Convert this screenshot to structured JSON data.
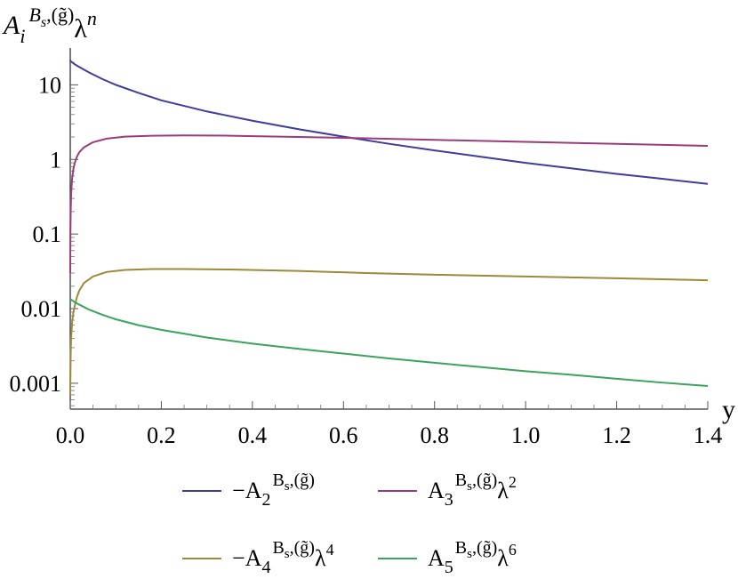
{
  "chart_data": {
    "type": "line",
    "title": "",
    "y_axis_label": {
      "base": "A",
      "sub": "i",
      "sup": "B",
      "sup_sub": "s",
      "sup_rest": ",(g̃)",
      "tail": "λ",
      "tail_sup": "n"
    },
    "x_axis_label": "y",
    "xlim": [
      0,
      1.4
    ],
    "ylim": [
      0.00045,
      25
    ],
    "y_scale": "log",
    "x_ticks": [
      {
        "value": 0.0,
        "label": "0.0"
      },
      {
        "value": 0.2,
        "label": "0.2"
      },
      {
        "value": 0.4,
        "label": "0.4"
      },
      {
        "value": 0.6,
        "label": "0.6"
      },
      {
        "value": 0.8,
        "label": "0.8"
      },
      {
        "value": 1.0,
        "label": "1.0"
      },
      {
        "value": 1.2,
        "label": "1.2"
      },
      {
        "value": 1.4,
        "label": "1.4"
      }
    ],
    "y_ticks": [
      {
        "value": 10,
        "label": "10"
      },
      {
        "value": 1,
        "label": "1"
      },
      {
        "value": 0.1,
        "label": "0.1"
      },
      {
        "value": 0.01,
        "label": "0.01"
      },
      {
        "value": 0.001,
        "label": "0.001"
      }
    ],
    "grid": false,
    "legend_position": "bottom",
    "series": [
      {
        "prefix": "−A",
        "sub": "2",
        "sup": "B",
        "sup_sub": "s",
        "sup_rest": ",(g̃)",
        "tail": "",
        "tail_sup": "",
        "color": "#3d3d9e",
        "x": [
          0,
          0.0005,
          0.002,
          0.005,
          0.01,
          0.02,
          0.04,
          0.07,
          0.1,
          0.15,
          0.2,
          0.3,
          0.4,
          0.5,
          0.6,
          0.7,
          0.8,
          0.9,
          1.0,
          1.1,
          1.2,
          1.3,
          1.4
        ],
        "y": [
          21.5,
          21.0,
          20.5,
          19.8,
          18.8,
          17.3,
          14.8,
          12.0,
          10.0,
          7.8,
          6.2,
          4.4,
          3.3,
          2.55,
          2.02,
          1.62,
          1.32,
          1.09,
          0.9,
          0.76,
          0.64,
          0.55,
          0.47
        ]
      },
      {
        "prefix": "A",
        "sub": "3",
        "sup": "B",
        "sup_sub": "s",
        "sup_rest": ",(g̃)",
        "tail": "λ",
        "tail_sup": "2",
        "color": "#9b3c78",
        "x": [
          0,
          0.0005,
          0.001,
          0.002,
          0.004,
          0.007,
          0.01,
          0.015,
          0.02,
          0.03,
          0.05,
          0.08,
          0.12,
          0.18,
          0.25,
          0.35,
          0.5,
          0.65,
          0.8,
          1.0,
          1.2,
          1.4
        ],
        "y": [
          0.03,
          0.12,
          0.2,
          0.35,
          0.55,
          0.75,
          0.9,
          1.1,
          1.25,
          1.45,
          1.7,
          1.9,
          2.02,
          2.08,
          2.1,
          2.08,
          2.0,
          1.92,
          1.83,
          1.72,
          1.62,
          1.52
        ]
      },
      {
        "prefix": "−A",
        "sub": "4",
        "sup": "B",
        "sup_sub": "s",
        "sup_rest": ",(g̃)",
        "tail": "λ",
        "tail_sup": "4",
        "color": "#9a8a3a",
        "x": [
          0,
          0.0005,
          0.001,
          0.002,
          0.004,
          0.007,
          0.01,
          0.015,
          0.02,
          0.03,
          0.05,
          0.08,
          0.12,
          0.18,
          0.25,
          0.35,
          0.5,
          0.65,
          0.8,
          1.0,
          1.2,
          1.4
        ],
        "y": [
          0.0007,
          0.0014,
          0.0025,
          0.004,
          0.0065,
          0.009,
          0.011,
          0.0145,
          0.0175,
          0.022,
          0.027,
          0.031,
          0.033,
          0.034,
          0.034,
          0.0335,
          0.032,
          0.03,
          0.0285,
          0.027,
          0.0255,
          0.024
        ]
      },
      {
        "prefix": "A",
        "sub": "5",
        "sup": "B",
        "sup_sub": "s",
        "sup_rest": ",(g̃)",
        "tail": "λ",
        "tail_sup": "6",
        "color": "#3aa35e",
        "x": [
          0,
          0.005,
          0.01,
          0.02,
          0.04,
          0.07,
          0.1,
          0.15,
          0.2,
          0.3,
          0.4,
          0.5,
          0.6,
          0.7,
          0.8,
          0.9,
          1.0,
          1.1,
          1.2,
          1.3,
          1.4
        ],
        "y": [
          0.0135,
          0.0128,
          0.0122,
          0.0113,
          0.0098,
          0.0083,
          0.0072,
          0.006,
          0.0052,
          0.0041,
          0.0034,
          0.0029,
          0.0025,
          0.00215,
          0.00188,
          0.00165,
          0.00145,
          0.0013,
          0.00115,
          0.00102,
          0.00092
        ]
      }
    ]
  }
}
